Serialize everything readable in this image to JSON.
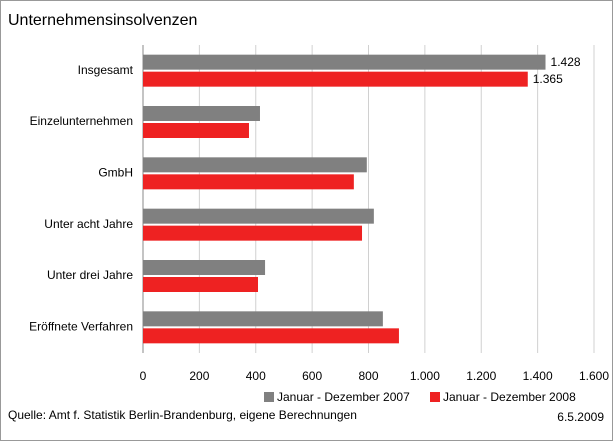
{
  "chart_data": {
    "type": "hbar",
    "title": "Unternehmensinsolvenzen",
    "categories": [
      "Insgesamt",
      "Einzelunternehmen",
      "GmbH",
      "Unter acht Jahre",
      "Unter drei Jahre",
      "Eröffnete Verfahren"
    ],
    "series": [
      {
        "name": "Januar - Dezember 2007",
        "color": "#808080",
        "values": [
          1428,
          415,
          794,
          819,
          433,
          851
        ],
        "value_labels": [
          "1.428",
          null,
          null,
          null,
          null,
          null
        ]
      },
      {
        "name": "Januar - Dezember 2008",
        "color": "#ee2222",
        "values": [
          1365,
          376,
          748,
          777,
          408,
          908
        ],
        "value_labels": [
          "1.365",
          null,
          null,
          null,
          null,
          null
        ]
      }
    ],
    "xlim": [
      0,
      1600
    ],
    "xticks": [
      0,
      200,
      400,
      600,
      800,
      {
        "value": 1000,
        "label": "1.000"
      },
      {
        "value": 1200,
        "label": "1.200"
      },
      {
        "value": 1400,
        "label": "1.400"
      },
      {
        "value": 1600,
        "label": "1.600"
      }
    ],
    "grid": true,
    "source": "Quelle: Amt f. Statistik Berlin-Brandenburg, eigene Berechnungen",
    "date": "6.5.2009"
  }
}
